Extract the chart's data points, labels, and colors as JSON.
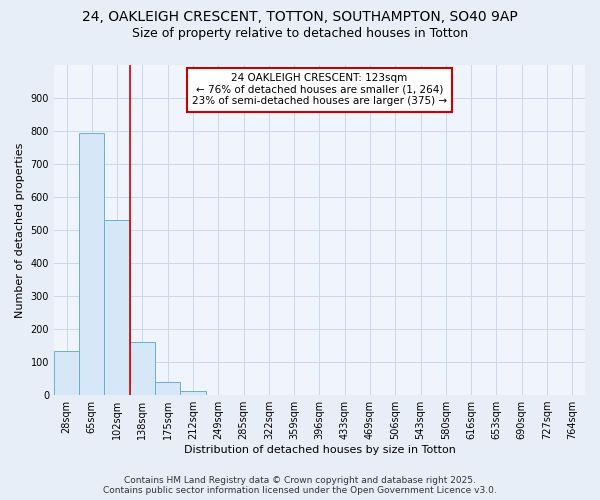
{
  "title": "24, OAKLEIGH CRESCENT, TOTTON, SOUTHAMPTON, SO40 9AP",
  "subtitle": "Size of property relative to detached houses in Totton",
  "xlabel": "Distribution of detached houses by size in Totton",
  "ylabel": "Number of detached properties",
  "bar_labels": [
    "28sqm",
    "65sqm",
    "102sqm",
    "138sqm",
    "175sqm",
    "212sqm",
    "249sqm",
    "285sqm",
    "322sqm",
    "359sqm",
    "396sqm",
    "433sqm",
    "469sqm",
    "506sqm",
    "543sqm",
    "580sqm",
    "616sqm",
    "653sqm",
    "690sqm",
    "727sqm",
    "764sqm"
  ],
  "bar_values": [
    135,
    795,
    530,
    160,
    40,
    12,
    0,
    0,
    0,
    0,
    0,
    0,
    0,
    0,
    0,
    0,
    0,
    0,
    0,
    0,
    0
  ],
  "bar_color": "#d6e8f7",
  "bar_edge_color": "#6aaed6",
  "red_line_x": 2.5,
  "annotation_line1": "24 OAKLEIGH CRESCENT: 123sqm",
  "annotation_line2": "← 76% of detached houses are smaller (1, 264)",
  "annotation_line3": "23% of semi-detached houses are larger (375) →",
  "annotation_box_color": "#ffffff",
  "annotation_box_edge_color": "#cc0000",
  "ylim": [
    0,
    1000
  ],
  "yticks": [
    0,
    100,
    200,
    300,
    400,
    500,
    600,
    700,
    800,
    900,
    1000
  ],
  "grid_color": "#c8d8ec",
  "background_color": "#e8eef8",
  "plot_bg_color": "#f0f4fc",
  "footer_line1": "Contains HM Land Registry data © Crown copyright and database right 2025.",
  "footer_line2": "Contains public sector information licensed under the Open Government Licence v3.0.",
  "red_line_color": "#cc0000",
  "title_fontsize": 10,
  "subtitle_fontsize": 9,
  "axis_label_fontsize": 8,
  "tick_fontsize": 7,
  "annotation_fontsize": 7.5,
  "footer_fontsize": 6.5
}
